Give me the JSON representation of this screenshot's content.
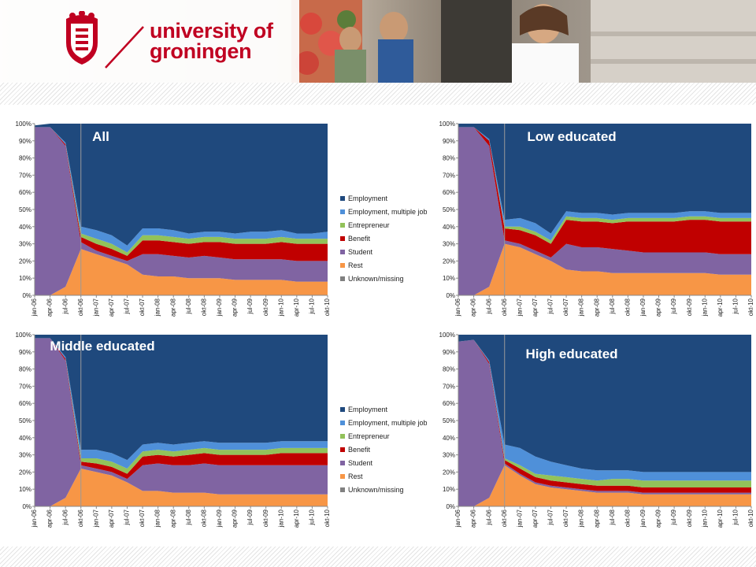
{
  "header": {
    "brand_line1": "university of",
    "brand_line2": "groningen",
    "logo_icon": "university-crest-icon",
    "brand_color": "#c00021"
  },
  "series_colors": {
    "Employment": "#1f497d",
    "Employment, multiple jobs": "#4f90d9",
    "Entrepreneur": "#92c25a",
    "Benefit": "#c00000",
    "Student": "#8064a2",
    "Rest": "#f79646",
    "Unknown/missing": "#808080"
  },
  "chart_data": [
    {
      "type": "area",
      "stacked": true,
      "title": "All",
      "categories": [
        "jan-06",
        "apr-06",
        "jul-06",
        "okt-06",
        "jan-07",
        "apr-07",
        "jul-07",
        "okt-07",
        "jan-08",
        "apr-08",
        "jul-08",
        "okt-08",
        "jan-09",
        "apr-09",
        "jul-09",
        "okt-09",
        "jan-10",
        "apr-10",
        "jul-10",
        "okt-10"
      ],
      "y_tick_labels": [
        "0%",
        "10%",
        "20%",
        "30%",
        "40%",
        "50%",
        "60%",
        "70%",
        "80%",
        "90%",
        "100%"
      ],
      "ylim": [
        0,
        100
      ],
      "legend": "right",
      "series": [
        {
          "name": "Unknown/missing",
          "values": [
            0,
            0,
            0,
            0,
            0,
            0,
            0,
            0,
            0,
            0,
            0,
            0,
            0,
            0,
            0,
            0,
            0,
            0,
            0,
            0
          ]
        },
        {
          "name": "Rest",
          "values": [
            0,
            0,
            5,
            27,
            24,
            21,
            18,
            12,
            11,
            11,
            10,
            10,
            10,
            9,
            9,
            9,
            9,
            8,
            8,
            8
          ]
        },
        {
          "name": "Student",
          "values": [
            98,
            98,
            82,
            4,
            2,
            2,
            2,
            12,
            13,
            12,
            12,
            13,
            12,
            12,
            12,
            12,
            12,
            12,
            12,
            12
          ]
        },
        {
          "name": "Benefit",
          "values": [
            0,
            0,
            1,
            3,
            4,
            4,
            3,
            8,
            8,
            8,
            8,
            8,
            9,
            9,
            9,
            9,
            10,
            10,
            10,
            10
          ]
        },
        {
          "name": "Entrepreneur",
          "values": [
            0,
            0,
            0,
            2,
            3,
            3,
            2,
            3,
            3,
            3,
            3,
            3,
            3,
            3,
            3,
            3,
            3,
            3,
            3,
            3
          ]
        },
        {
          "name": "Employment, multiple jobs",
          "values": [
            0,
            0,
            1,
            4,
            5,
            5,
            4,
            4,
            4,
            4,
            3,
            3,
            3,
            3,
            4,
            4,
            4,
            3,
            3,
            4
          ]
        },
        {
          "name": "Employment",
          "values": [
            1,
            2,
            11,
            60,
            62,
            65,
            71,
            61,
            61,
            62,
            64,
            63,
            63,
            64,
            63,
            63,
            62,
            64,
            64,
            63
          ]
        }
      ]
    },
    {
      "type": "area",
      "stacked": true,
      "title": "Low educated",
      "categories": [
        "jan-06",
        "apr-06",
        "jul-06",
        "okt-06",
        "jan-07",
        "apr-07",
        "jul-07",
        "okt-07",
        "jan-08",
        "apr-08",
        "jul-08",
        "okt-08",
        "jan-09",
        "apr-09",
        "jul-09",
        "okt-09",
        "jan-10",
        "apr-10",
        "jul-10",
        "okt-10"
      ],
      "y_tick_labels": [
        "0%",
        "10%",
        "20%",
        "30%",
        "40%",
        "50%",
        "60%",
        "70%",
        "80%",
        "90%",
        "100%"
      ],
      "ylim": [
        0,
        100
      ],
      "legend": "none",
      "series": [
        {
          "name": "Unknown/missing",
          "values": [
            0,
            0,
            0,
            0,
            0,
            0,
            0,
            0,
            0,
            0,
            0,
            0,
            0,
            0,
            0,
            0,
            0,
            0,
            0,
            0
          ]
        },
        {
          "name": "Rest",
          "values": [
            0,
            0,
            5,
            30,
            28,
            24,
            20,
            15,
            14,
            14,
            13,
            13,
            13,
            13,
            13,
            13,
            13,
            12,
            12,
            12
          ]
        },
        {
          "name": "Student",
          "values": [
            98,
            98,
            82,
            2,
            2,
            2,
            2,
            15,
            14,
            14,
            14,
            13,
            12,
            12,
            12,
            12,
            12,
            12,
            12,
            12
          ]
        },
        {
          "name": "Benefit",
          "values": [
            0,
            0,
            3,
            7,
            8,
            9,
            8,
            14,
            15,
            15,
            15,
            17,
            18,
            18,
            18,
            19,
            19,
            19,
            19,
            19
          ]
        },
        {
          "name": "Entrepreneur",
          "values": [
            0,
            0,
            0,
            1,
            2,
            2,
            2,
            2,
            2,
            2,
            2,
            2,
            2,
            2,
            2,
            2,
            2,
            2,
            2,
            2
          ]
        },
        {
          "name": "Employment, multiple jobs",
          "values": [
            0,
            0,
            1,
            4,
            5,
            5,
            4,
            3,
            3,
            3,
            3,
            3,
            3,
            3,
            3,
            3,
            3,
            3,
            3,
            3
          ]
        },
        {
          "name": "Employment",
          "values": [
            2,
            2,
            9,
            56,
            55,
            58,
            64,
            51,
            52,
            52,
            53,
            52,
            52,
            52,
            52,
            51,
            51,
            52,
            52,
            52
          ]
        }
      ]
    },
    {
      "type": "area",
      "stacked": true,
      "title": "Middle educated",
      "categories": [
        "jan-06",
        "apr-06",
        "jul-06",
        "okt-06",
        "jan-07",
        "apr-07",
        "jul-07",
        "okt-07",
        "jan-08",
        "apr-08",
        "jul-08",
        "okt-08",
        "jan-09",
        "apr-09",
        "jul-09",
        "okt-09",
        "jan-10",
        "apr-10",
        "jul-10",
        "okt-10"
      ],
      "y_tick_labels": [
        "0%",
        "10%",
        "20%",
        "30%",
        "40%",
        "50%",
        "60%",
        "70%",
        "80%",
        "90%",
        "100%"
      ],
      "ylim": [
        0,
        100
      ],
      "legend": "right",
      "series": [
        {
          "name": "Unknown/missing",
          "values": [
            0,
            0,
            0,
            0,
            0,
            0,
            0,
            0,
            0,
            0,
            0,
            0,
            0,
            0,
            0,
            0,
            0,
            0,
            0,
            0
          ]
        },
        {
          "name": "Rest",
          "values": [
            0,
            0,
            5,
            22,
            20,
            18,
            14,
            9,
            9,
            8,
            8,
            8,
            7,
            7,
            7,
            7,
            7,
            7,
            7,
            7
          ]
        },
        {
          "name": "Student",
          "values": [
            98,
            98,
            80,
            2,
            2,
            2,
            2,
            15,
            16,
            16,
            16,
            17,
            17,
            17,
            17,
            17,
            17,
            17,
            17,
            17
          ]
        },
        {
          "name": "Benefit",
          "values": [
            0,
            0,
            1,
            2,
            3,
            3,
            3,
            5,
            5,
            5,
            6,
            6,
            6,
            6,
            6,
            6,
            7,
            7,
            7,
            7
          ]
        },
        {
          "name": "Entrepreneur",
          "values": [
            0,
            0,
            0,
            2,
            3,
            3,
            3,
            3,
            3,
            3,
            3,
            3,
            3,
            3,
            3,
            3,
            3,
            3,
            3,
            3
          ]
        },
        {
          "name": "Employment, multiple jobs",
          "values": [
            0,
            0,
            1,
            5,
            5,
            5,
            5,
            4,
            4,
            4,
            4,
            4,
            4,
            4,
            4,
            4,
            4,
            4,
            4,
            4
          ]
        },
        {
          "name": "Employment",
          "values": [
            2,
            2,
            13,
            67,
            67,
            69,
            73,
            64,
            63,
            64,
            63,
            62,
            63,
            63,
            63,
            63,
            62,
            62,
            62,
            62
          ]
        }
      ]
    },
    {
      "type": "area",
      "stacked": true,
      "title": "High educated",
      "categories": [
        "jan-06",
        "apr-06",
        "jul-06",
        "okt-06",
        "jan-07",
        "apr-07",
        "jul-07",
        "okt-07",
        "jan-08",
        "apr-08",
        "jul-08",
        "okt-08",
        "jan-09",
        "apr-09",
        "jul-09",
        "okt-09",
        "jan-10",
        "apr-10",
        "jul-10",
        "okt-10"
      ],
      "y_tick_labels": [
        "0%",
        "10%",
        "20%",
        "30%",
        "40%",
        "50%",
        "60%",
        "70%",
        "80%",
        "90%",
        "100%"
      ],
      "ylim": [
        0,
        100
      ],
      "legend": "none",
      "series": [
        {
          "name": "Unknown/missing",
          "values": [
            0,
            0,
            0,
            0,
            0,
            0,
            0,
            0,
            0,
            0,
            0,
            0,
            0,
            0,
            0,
            0,
            0,
            0,
            0,
            0
          ]
        },
        {
          "name": "Rest",
          "values": [
            0,
            0,
            5,
            24,
            18,
            13,
            11,
            10,
            9,
            8,
            8,
            8,
            7,
            7,
            7,
            7,
            7,
            7,
            7,
            7
          ]
        },
        {
          "name": "Student",
          "values": [
            96,
            97,
            78,
            1,
            1,
            1,
            1,
            1,
            1,
            1,
            1,
            1,
            1,
            1,
            1,
            1,
            1,
            1,
            1,
            1
          ]
        },
        {
          "name": "Benefit",
          "values": [
            0,
            0,
            1,
            2,
            3,
            3,
            3,
            3,
            3,
            3,
            3,
            3,
            3,
            3,
            3,
            3,
            3,
            3,
            3,
            3
          ]
        },
        {
          "name": "Entrepreneur",
          "values": [
            0,
            0,
            0,
            1,
            2,
            2,
            3,
            3,
            3,
            3,
            4,
            4,
            4,
            4,
            4,
            4,
            4,
            4,
            4,
            4
          ]
        },
        {
          "name": "Employment, multiple jobs",
          "values": [
            0,
            0,
            1,
            8,
            10,
            10,
            8,
            7,
            6,
            6,
            5,
            5,
            5,
            5,
            5,
            5,
            5,
            5,
            5,
            5
          ]
        },
        {
          "name": "Employment",
          "values": [
            4,
            3,
            15,
            64,
            66,
            71,
            74,
            76,
            78,
            79,
            79,
            79,
            80,
            80,
            80,
            80,
            80,
            80,
            80,
            80
          ]
        }
      ]
    }
  ]
}
